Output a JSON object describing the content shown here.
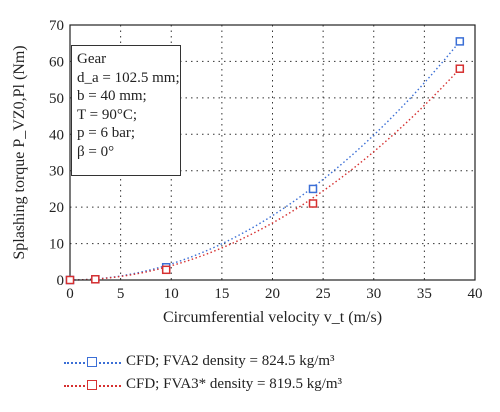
{
  "chart_data": {
    "type": "scatter",
    "xlabel": "Circumferential velocity v_t (m/s)",
    "ylabel": "Splashing torque P_VZ0,Pl (Nm)",
    "xlim": [
      0,
      40
    ],
    "ylim": [
      0,
      70
    ],
    "x_ticks": [
      "0",
      "5",
      "10",
      "15",
      "20",
      "25",
      "30",
      "35",
      "40"
    ],
    "y_ticks": [
      "0",
      "10",
      "20",
      "30",
      "40",
      "50",
      "60",
      "70"
    ],
    "grid": true,
    "series": [
      {
        "name": "CFD; FVA2  density = 824.5 kg/m³",
        "color": "#3b6fd6",
        "x": [
          0,
          2.5,
          9.5,
          24,
          38.5
        ],
        "y": [
          0,
          0.2,
          3.5,
          25,
          65.5
        ]
      },
      {
        "name": "CFD; FVA3*  density = 819.5 kg/m³",
        "color": "#d63030",
        "x": [
          0,
          2.5,
          9.5,
          24,
          38.5
        ],
        "y": [
          0,
          0.2,
          2.8,
          21,
          58
        ]
      }
    ],
    "annotation": [
      "Gear",
      "d_a = 102.5 mm;",
      "b = 40 mm;",
      "T = 90°C;",
      "p = 6 bar;",
      "β = 0°"
    ],
    "legend_position": "bottom"
  }
}
